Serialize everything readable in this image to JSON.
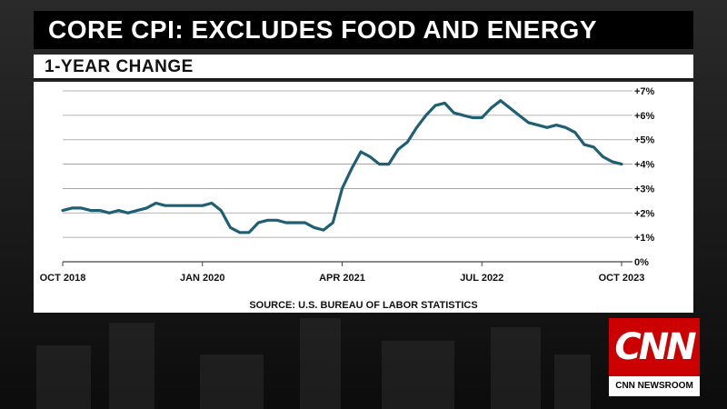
{
  "header": {
    "title": "CORE CPI: EXCLUDES FOOD AND ENERGY",
    "subtitle": "1-YEAR CHANGE"
  },
  "source": "SOURCE: U.S. BUREAU OF LABOR STATISTICS",
  "logo": {
    "text": "CNN",
    "label": "CNN NEWSROOM"
  },
  "colors": {
    "line": "#1f5f73",
    "logo_red": "#cc0000",
    "title_bg": "#000000"
  },
  "chart_data": {
    "type": "line",
    "title": "CORE CPI: EXCLUDES FOOD AND ENERGY",
    "subtitle": "1-YEAR CHANGE",
    "xlabel": "",
    "ylabel": "",
    "ylim": [
      0,
      7
    ],
    "grid": true,
    "y_ticks": [
      "0%",
      "+1%",
      "+2%",
      "+3%",
      "+4%",
      "+5%",
      "+6%",
      "+7%"
    ],
    "x_ticks": [
      {
        "label": "OCT 2018",
        "index": 0
      },
      {
        "label": "JAN 2020",
        "index": 15
      },
      {
        "label": "APR 2021",
        "index": 30
      },
      {
        "label": "JUL 2022",
        "index": 45
      },
      {
        "label": "OCT 2023",
        "index": 60
      }
    ],
    "series": [
      {
        "values": [
          2.1,
          2.2,
          2.2,
          2.1,
          2.1,
          2.0,
          2.1,
          2.0,
          2.1,
          2.2,
          2.4,
          2.3,
          2.3,
          2.3,
          2.3,
          2.3,
          2.4,
          2.1,
          1.4,
          1.2,
          1.2,
          1.6,
          1.7,
          1.7,
          1.6,
          1.6,
          1.6,
          1.4,
          1.3,
          1.6,
          3.0,
          3.8,
          4.5,
          4.3,
          4.0,
          4.0,
          4.6,
          4.9,
          5.5,
          6.0,
          6.4,
          6.5,
          6.1,
          6.0,
          5.9,
          5.9,
          6.3,
          6.6,
          6.3,
          6.0,
          5.7,
          5.6,
          5.5,
          5.6,
          5.5,
          5.3,
          4.8,
          4.7,
          4.3,
          4.1,
          4.0
        ]
      }
    ]
  }
}
